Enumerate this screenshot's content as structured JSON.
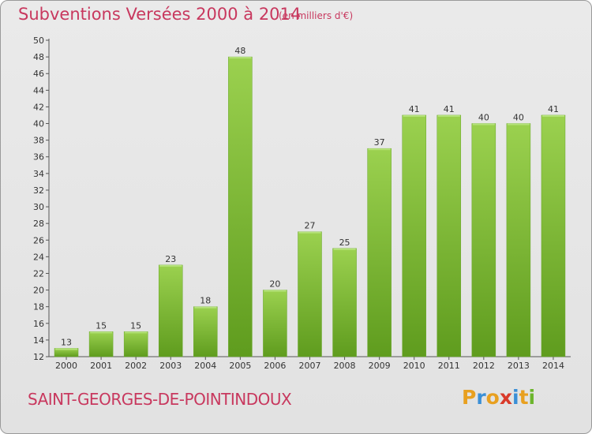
{
  "header": {
    "title": "Subventions Versées 2000 à 2014",
    "unit_note": "(en milliers d'€)"
  },
  "footer": {
    "commune": "SAINT-GEORGES-DE-POINTINDOUX",
    "logo_text": "Proxiti"
  },
  "colors": {
    "title": "#c8385e",
    "bar_light": "#9bd14f",
    "bar_dark": "#5f9c1e",
    "logo": [
      "#e8a020",
      "#3a8fd6",
      "#e8a020",
      "#d93a2a",
      "#3a8fd6",
      "#e8a020",
      "#6cb52d"
    ]
  },
  "chart_data": {
    "type": "bar",
    "title": "Subventions Versées 2000 à 2014",
    "subtitle": "(en milliers d'€)",
    "xlabel": "",
    "ylabel": "",
    "categories": [
      "2000",
      "2001",
      "2002",
      "2003",
      "2004",
      "2005",
      "2006",
      "2007",
      "2008",
      "2009",
      "2010",
      "2011",
      "2012",
      "2013",
      "2014"
    ],
    "values": [
      13,
      15,
      15,
      23,
      18,
      48,
      20,
      27,
      25,
      37,
      41,
      41,
      40,
      40,
      41
    ],
    "ylim": [
      12,
      50
    ],
    "yticks": [
      12,
      14,
      16,
      18,
      20,
      22,
      24,
      26,
      28,
      30,
      32,
      34,
      36,
      38,
      40,
      42,
      44,
      46,
      48,
      50
    ],
    "grid": false,
    "legend": "none",
    "data_labels": true
  }
}
